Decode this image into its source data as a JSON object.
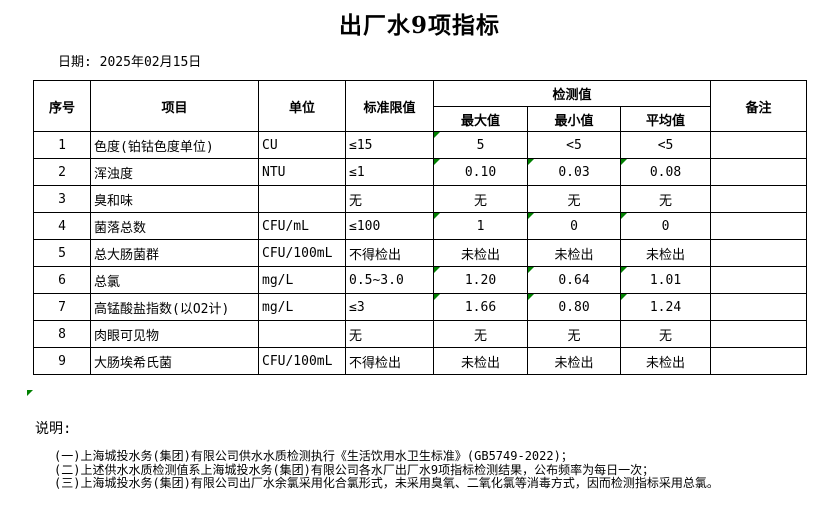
{
  "title": "出厂水9项指标",
  "date_line": "日期: 2025年02月15日",
  "colors": {
    "indicator_green": "#008000",
    "border": "#000000",
    "text": "#000000",
    "background": "#ffffff"
  },
  "table": {
    "headers": {
      "no": "序号",
      "item": "项目",
      "unit": "单位",
      "limit": "标准限值",
      "detection": "检测值",
      "max": "最大值",
      "min": "最小值",
      "avg": "平均值",
      "remark": "备注"
    },
    "rows": [
      {
        "no": "1",
        "item": "色度(铂钴色度单位)",
        "unit": "CU",
        "limit": "≤15",
        "max": "5",
        "min": "<5",
        "avg": "<5",
        "remark": "",
        "indicators": [
          "max"
        ]
      },
      {
        "no": "2",
        "item": "浑浊度",
        "unit": "NTU",
        "limit": "≤1",
        "max": "0.10",
        "min": "0.03",
        "avg": "0.08",
        "remark": "",
        "indicators": [
          "max",
          "min",
          "avg"
        ]
      },
      {
        "no": "3",
        "item": "臭和味",
        "unit": "",
        "limit": "无",
        "max": "无",
        "min": "无",
        "avg": "无",
        "remark": "",
        "indicators": []
      },
      {
        "no": "4",
        "item": "菌落总数",
        "unit": "CFU/mL",
        "limit": "≤100",
        "max": "1",
        "min": "0",
        "avg": "0",
        "remark": "",
        "indicators": [
          "max",
          "min",
          "avg"
        ]
      },
      {
        "no": "5",
        "item": "总大肠菌群",
        "unit": "CFU/100mL",
        "limit": "不得检出",
        "max": "未检出",
        "min": "未检出",
        "avg": "未检出",
        "remark": "",
        "indicators": []
      },
      {
        "no": "6",
        "item": "总氯",
        "unit": "mg/L",
        "limit": "0.5~3.0",
        "max": "1.20",
        "min": "0.64",
        "avg": "1.01",
        "remark": "",
        "indicators": [
          "max",
          "min",
          "avg"
        ]
      },
      {
        "no": "7",
        "item": "高锰酸盐指数(以O2计)",
        "unit": "mg/L",
        "limit": "≤3",
        "max": "1.66",
        "min": "0.80",
        "avg": "1.24",
        "remark": "",
        "indicators": [
          "max",
          "min",
          "avg"
        ]
      },
      {
        "no": "8",
        "item": "肉眼可见物",
        "unit": "",
        "limit": "无",
        "max": "无",
        "min": "无",
        "avg": "无",
        "remark": "",
        "indicators": []
      },
      {
        "no": "9",
        "item": "大肠埃希氏菌",
        "unit": "CFU/100mL",
        "limit": "不得检出",
        "max": "未检出",
        "min": "未检出",
        "avg": "未检出",
        "remark": "",
        "indicators": []
      }
    ]
  },
  "notes": {
    "label": "说明:",
    "lines": [
      "(一)上海城投水务(集团)有限公司供水水质检测执行《生活饮用水卫生标准》(GB5749-2022)；",
      "(二)上述供水水质检测值系上海城投水务(集团)有限公司各水厂出厂水9项指标检测结果，公布频率为每日一次；",
      "(三)上海城投水务(集团)有限公司出厂水余氯采用化合氯形式，未采用臭氧、二氧化氯等消毒方式，因而检测指标采用总氯。"
    ]
  }
}
